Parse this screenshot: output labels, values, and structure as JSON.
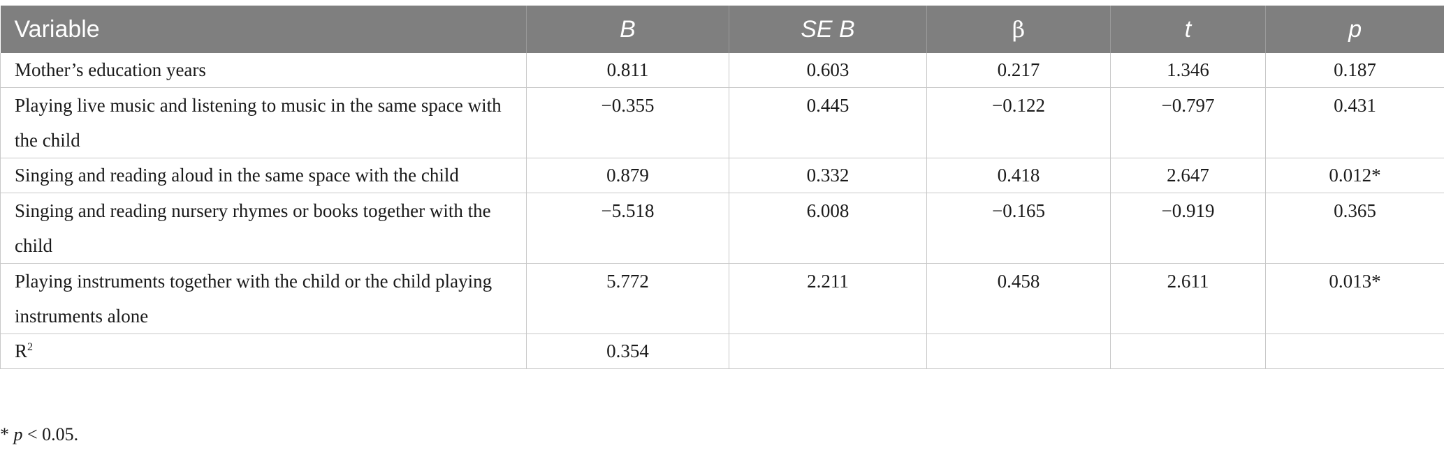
{
  "header": {
    "variable": "Variable",
    "b": "B",
    "se_b": "SE B",
    "beta": "β",
    "t": "t",
    "p": "p"
  },
  "rows": [
    {
      "variable": "Mother’s education years",
      "b": "0.811",
      "se_b": "0.603",
      "beta": "0.217",
      "t": "1.346",
      "p": "0.187"
    },
    {
      "variable": "Playing live music and listening to music in the same space with the child",
      "b": "−0.355",
      "se_b": "0.445",
      "beta": "−0.122",
      "t": "−0.797",
      "p": "0.431"
    },
    {
      "variable": "Singing and reading aloud in the same space with the child",
      "b": "0.879",
      "se_b": "0.332",
      "beta": "0.418",
      "t": "2.647",
      "p": "0.012*"
    },
    {
      "variable": "Singing and reading nursery rhymes or books together with the child",
      "b": "−5.518",
      "se_b": "6.008",
      "beta": "−0.165",
      "t": "−0.919",
      "p": "0.365"
    },
    {
      "variable": "Playing instruments together with the child or the child playing instruments alone",
      "b": "5.772",
      "se_b": "2.211",
      "beta": "0.458",
      "t": "2.611",
      "p": "0.013*"
    }
  ],
  "r2_row": {
    "label": "R",
    "label_sup": "2",
    "b": "0.354"
  },
  "footnote": {
    "star": "* ",
    "p": "p",
    "rest": " < 0.05."
  }
}
